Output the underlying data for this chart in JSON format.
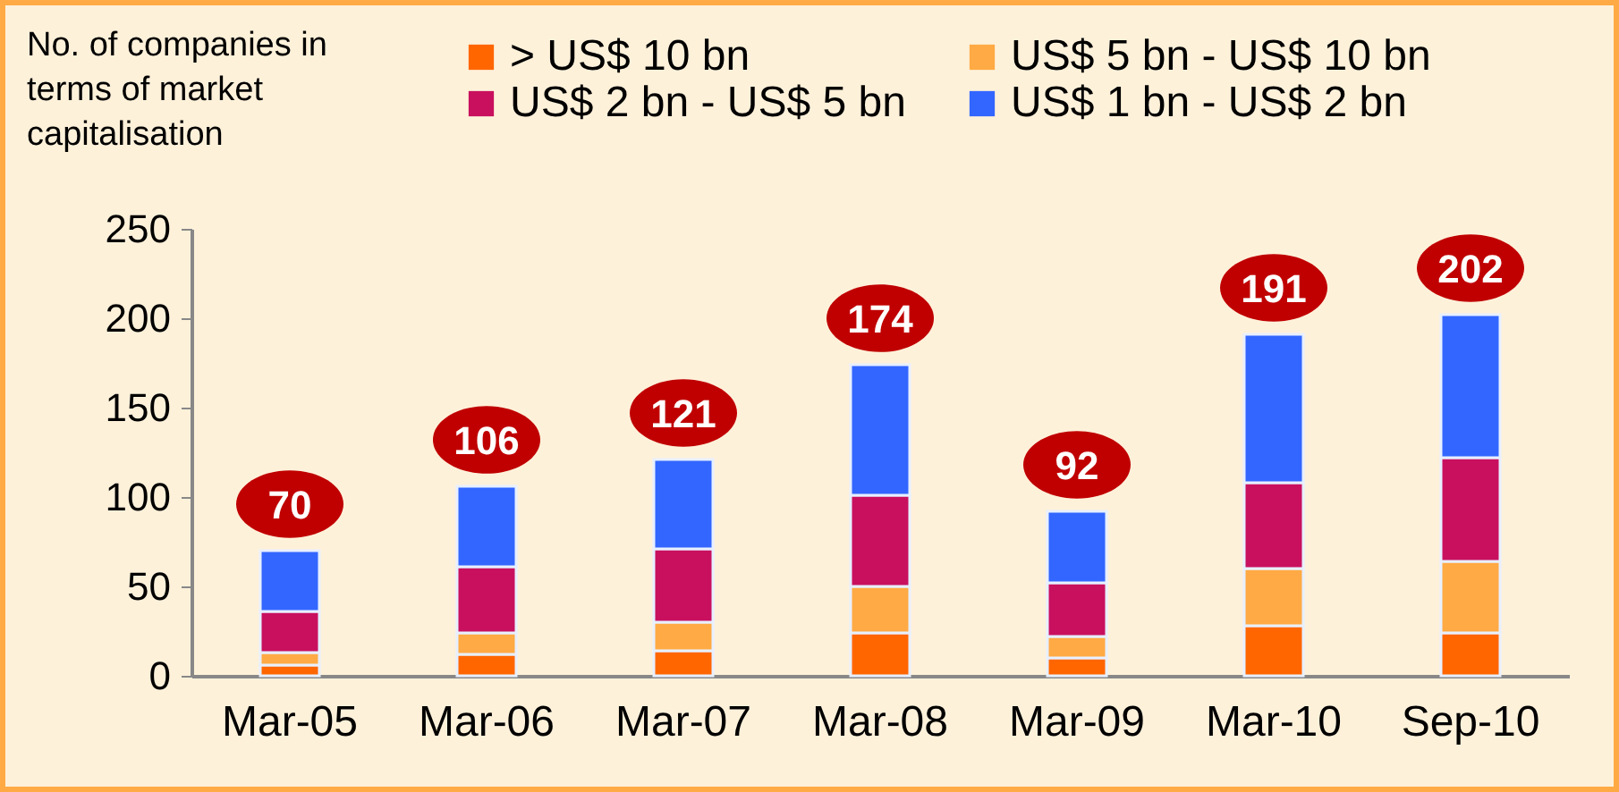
{
  "chart_data": {
    "type": "bar",
    "stacked": true,
    "ylabel": "No. of companies in\nterms of market\ncapitalisation",
    "categories": [
      "Mar-05",
      "Mar-06",
      "Mar-07",
      "Mar-08",
      "Mar-09",
      "Mar-10",
      "Sep-10"
    ],
    "series": [
      {
        "name": "> US$ 10 bn",
        "color": "#ff6600",
        "values": [
          6,
          12,
          14,
          24,
          10,
          28,
          24
        ]
      },
      {
        "name": "US$ 5 bn - US$ 10 bn",
        "color": "#ffaa44",
        "values": [
          7,
          12,
          16,
          26,
          12,
          32,
          40
        ]
      },
      {
        "name": "US$ 2 bn - US$ 5 bn",
        "color": "#c8105e",
        "values": [
          23,
          37,
          41,
          51,
          30,
          48,
          58
        ]
      },
      {
        "name": "US$ 1 bn - US$ 2 bn",
        "color": "#3366ff",
        "values": [
          34,
          45,
          50,
          73,
          40,
          83,
          80
        ]
      }
    ],
    "totals": [
      "70",
      "106",
      "121",
      "174",
      "92",
      "191",
      "202"
    ],
    "ylim": [
      0,
      250
    ],
    "yticks": [
      0,
      50,
      100,
      150,
      200,
      250
    ],
    "legend": "top"
  }
}
